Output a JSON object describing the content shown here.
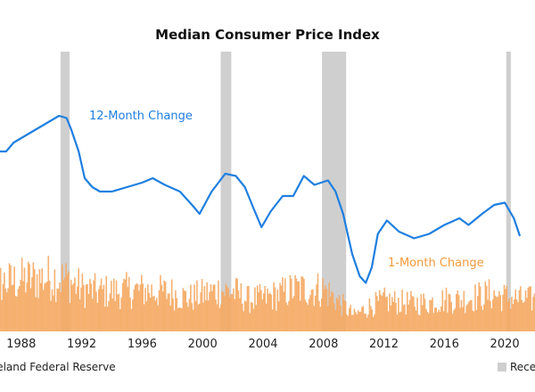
{
  "chart_data": {
    "type": "line",
    "title": "Median Consumer Price Index",
    "xlim": [
      1985.0,
      2022.0
    ],
    "x_ticks": [
      "1988",
      "1992",
      "1996",
      "2000",
      "2004",
      "2008",
      "2012",
      "2016",
      "2020"
    ],
    "x_tick_values": [
      1988,
      1992,
      1996,
      2000,
      2004,
      2008,
      2012,
      2016,
      2020
    ],
    "recessions": [
      [
        1990.6,
        1991.2
      ],
      [
        2001.2,
        2001.9
      ],
      [
        2007.9,
        2009.5
      ],
      [
        2020.1,
        2020.4
      ]
    ],
    "annotations": {
      "twelve_month": "12-Month Change",
      "one_month": "1-Month Change"
    },
    "series": [
      {
        "name": "12-Month Change",
        "color": "#1f7fe0",
        "points": [
          [
            1985.0,
            4.1
          ],
          [
            1985.5,
            4.2
          ],
          [
            1986.0,
            3.9
          ],
          [
            1986.5,
            4.1
          ],
          [
            1987.0,
            4.1
          ],
          [
            1987.5,
            4.3
          ],
          [
            1988.0,
            4.4
          ],
          [
            1988.5,
            4.5
          ],
          [
            1989.0,
            4.6
          ],
          [
            1989.5,
            4.7
          ],
          [
            1990.0,
            4.8
          ],
          [
            1990.5,
            4.9
          ],
          [
            1991.0,
            4.85
          ],
          [
            1991.3,
            4.6
          ],
          [
            1991.8,
            4.1
          ],
          [
            1992.2,
            3.5
          ],
          [
            1992.7,
            3.3
          ],
          [
            1993.2,
            3.2
          ],
          [
            1994.0,
            3.2
          ],
          [
            1995.0,
            3.3
          ],
          [
            1996.0,
            3.4
          ],
          [
            1996.7,
            3.5
          ],
          [
            1997.5,
            3.35
          ],
          [
            1998.5,
            3.2
          ],
          [
            1999.3,
            2.9
          ],
          [
            1999.8,
            2.7
          ],
          [
            2000.6,
            3.2
          ],
          [
            2001.5,
            3.6
          ],
          [
            2002.2,
            3.55
          ],
          [
            2002.8,
            3.3
          ],
          [
            2003.4,
            2.8
          ],
          [
            2003.9,
            2.4
          ],
          [
            2004.5,
            2.75
          ],
          [
            2005.3,
            3.1
          ],
          [
            2006.0,
            3.1
          ],
          [
            2006.7,
            3.55
          ],
          [
            2007.4,
            3.35
          ],
          [
            2008.3,
            3.45
          ],
          [
            2008.8,
            3.2
          ],
          [
            2009.3,
            2.7
          ],
          [
            2009.9,
            1.8
          ],
          [
            2010.4,
            1.3
          ],
          [
            2010.8,
            1.15
          ],
          [
            2011.2,
            1.5
          ],
          [
            2011.6,
            2.25
          ],
          [
            2012.2,
            2.55
          ],
          [
            2013.0,
            2.3
          ],
          [
            2014.0,
            2.15
          ],
          [
            2015.0,
            2.25
          ],
          [
            2016.0,
            2.45
          ],
          [
            2017.0,
            2.6
          ],
          [
            2017.6,
            2.45
          ],
          [
            2018.5,
            2.7
          ],
          [
            2019.3,
            2.9
          ],
          [
            2020.0,
            2.95
          ],
          [
            2020.6,
            2.6
          ],
          [
            2021.0,
            2.2
          ]
        ]
      },
      {
        "name": "1-Month Change",
        "color": "#f5a862",
        "bars": [
          [
            1985.0,
            3.4
          ],
          [
            1986.0,
            3.6
          ],
          [
            1987.0,
            3.7
          ],
          [
            1988.0,
            3.9
          ],
          [
            1989.0,
            4.0
          ],
          [
            1990.0,
            4.1
          ],
          [
            1991.0,
            3.9
          ],
          [
            1992.0,
            3.2
          ],
          [
            1993.0,
            3.0
          ],
          [
            1994.0,
            3.0
          ],
          [
            1995.0,
            3.1
          ],
          [
            1996.0,
            3.1
          ],
          [
            1997.0,
            3.0
          ],
          [
            1998.0,
            2.9
          ],
          [
            1999.0,
            2.5
          ],
          [
            2000.0,
            2.8
          ],
          [
            2001.0,
            3.1
          ],
          [
            2002.0,
            3.0
          ],
          [
            2003.0,
            2.4
          ],
          [
            2004.0,
            2.5
          ],
          [
            2005.0,
            2.8
          ],
          [
            2006.0,
            3.2
          ],
          [
            2007.0,
            3.2
          ],
          [
            2008.0,
            3.2
          ],
          [
            2009.0,
            2.2
          ],
          [
            2010.0,
            1.2
          ],
          [
            2011.0,
            1.9
          ],
          [
            2012.0,
            2.3
          ],
          [
            2013.0,
            2.2
          ],
          [
            2014.0,
            2.1
          ],
          [
            2015.0,
            2.2
          ],
          [
            2016.0,
            2.4
          ],
          [
            2017.0,
            2.4
          ],
          [
            2018.0,
            2.6
          ],
          [
            2019.0,
            2.8
          ],
          [
            2020.0,
            2.6
          ],
          [
            2021.0,
            2.4
          ]
        ]
      }
    ]
  },
  "footer": {
    "source": "Cleveland Federal Reserve",
    "legend_recession": "Recession"
  }
}
